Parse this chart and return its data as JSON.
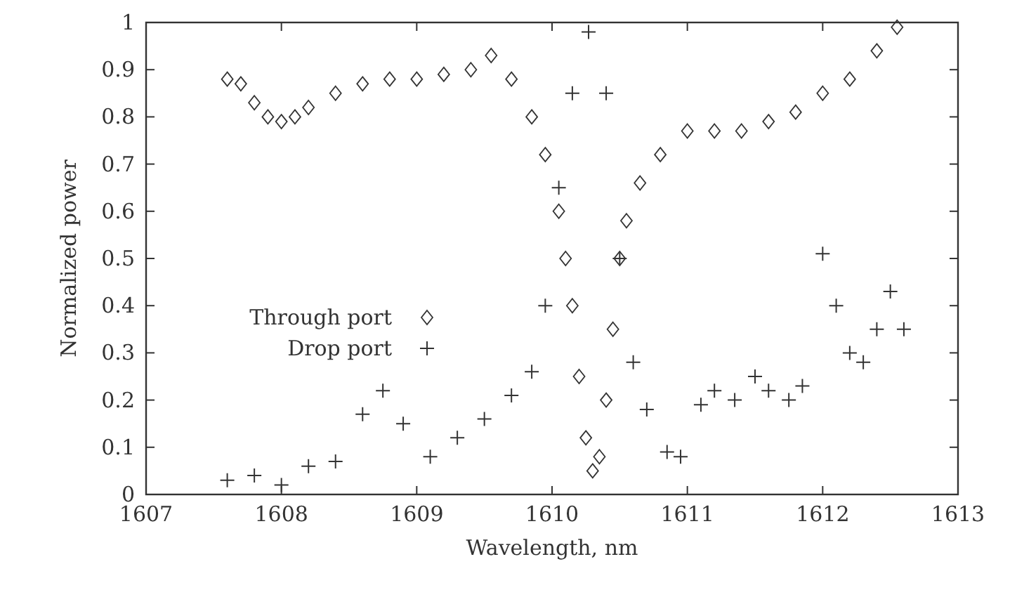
{
  "chart_data": {
    "type": "scatter",
    "xlabel": "Wavelength, nm",
    "ylabel": "Normalized power",
    "xlim": [
      1607,
      1613
    ],
    "xticks": [
      1607,
      1608,
      1609,
      1610,
      1611,
      1612,
      1613
    ],
    "ylim": [
      0,
      1
    ],
    "yticks": [
      0,
      0.1,
      0.2,
      0.3,
      0.4,
      0.5,
      0.6,
      0.7,
      0.8,
      0.9,
      1
    ],
    "legend": "left",
    "grid": false,
    "series": [
      {
        "name": "Through port",
        "color": "#333333",
        "marker": "diamond",
        "x": [
          1607.6,
          1607.7,
          1607.8,
          1607.9,
          1608.0,
          1608.1,
          1608.2,
          1608.4,
          1608.6,
          1608.8,
          1609.0,
          1609.2,
          1609.4,
          1609.55,
          1609.7,
          1609.85,
          1609.95,
          1610.05,
          1610.1,
          1610.15,
          1610.2,
          1610.25,
          1610.3,
          1610.35,
          1610.4,
          1610.45,
          1610.5,
          1610.55,
          1610.65,
          1610.8,
          1611.0,
          1611.2,
          1611.4,
          1611.6,
          1611.8,
          1612.0,
          1612.2,
          1612.4,
          1612.55
        ],
        "values": [
          0.88,
          0.87,
          0.83,
          0.8,
          0.79,
          0.8,
          0.82,
          0.85,
          0.87,
          0.88,
          0.88,
          0.89,
          0.9,
          0.93,
          0.88,
          0.8,
          0.72,
          0.6,
          0.5,
          0.4,
          0.25,
          0.12,
          0.05,
          0.08,
          0.2,
          0.35,
          0.5,
          0.58,
          0.66,
          0.72,
          0.77,
          0.77,
          0.77,
          0.79,
          0.81,
          0.85,
          0.88,
          0.94,
          0.99
        ]
      },
      {
        "name": "Drop port",
        "color": "#333333",
        "marker": "cross",
        "x": [
          1607.6,
          1607.8,
          1608.0,
          1608.2,
          1608.4,
          1608.6,
          1608.75,
          1608.9,
          1609.1,
          1609.3,
          1609.5,
          1609.7,
          1609.85,
          1609.95,
          1610.05,
          1610.15,
          1610.27,
          1610.4,
          1610.5,
          1610.6,
          1610.7,
          1610.85,
          1610.95,
          1611.1,
          1611.2,
          1611.35,
          1611.5,
          1611.6,
          1611.75,
          1611.85,
          1612.0,
          1612.1,
          1612.2,
          1612.3,
          1612.4,
          1612.5,
          1612.6
        ],
        "values": [
          0.03,
          0.04,
          0.02,
          0.06,
          0.07,
          0.17,
          0.22,
          0.15,
          0.08,
          0.12,
          0.16,
          0.21,
          0.26,
          0.4,
          0.65,
          0.85,
          0.98,
          0.85,
          0.5,
          0.28,
          0.18,
          0.09,
          0.08,
          0.19,
          0.22,
          0.2,
          0.25,
          0.22,
          0.2,
          0.23,
          0.51,
          0.4,
          0.3,
          0.28,
          0.35,
          0.43,
          0.35
        ]
      }
    ]
  }
}
